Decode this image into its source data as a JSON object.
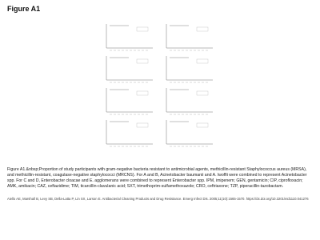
{
  "header": {
    "title": "Figure A1"
  },
  "caption": "Figure A1.&nbsp;Proportion of study participants with gram-negative bacteria resistant to antimicrobial agents, methicillin-resistant Staphylococcus aureus (MRSA), and methicillin-resistant, coagulase-negative staphylococci (MRCNS). For A and B, Acinetobacter baumanii and A. lwoffii were combined to represent Acinetobacter spp. For C and D, Enterobacter cloacae and E. agglomerans were combined to represent Enterobacter spp. IPM, imipenem; GEN, gentamicin; CIP, ciprofloxacin; AMK, amikacin; CAZ, ceftazidime; TIM, ticarcillin-clavulanic acid; SXT, trimethoprim-sulfamethoxazole; CRO, ceftriaxone; TZP, piperacillin-tazobactam.",
  "citation": "Aiello AE, Marshall B, Levy SB, Della-Latta P, Lin SX, Larson E. Antibacterial Cleaning Products and Drug Resistance. Emerg Infect Dis. 2005;11(10):1565-1570. https://dx.doi.org/10.3201/eid1110.041276"
}
